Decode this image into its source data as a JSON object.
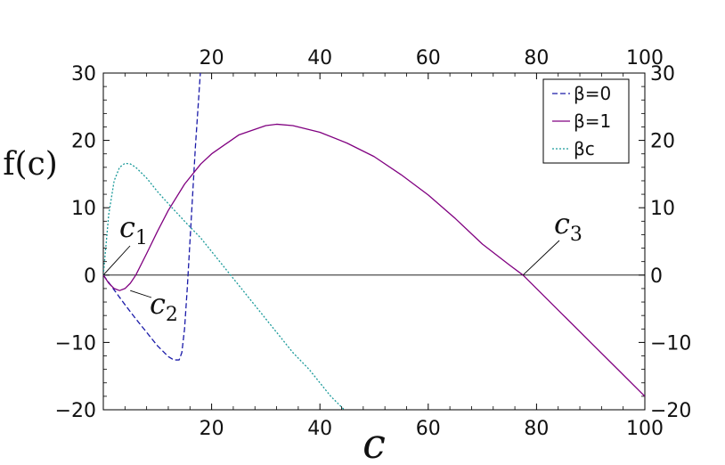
{
  "chart_data": {
    "type": "line",
    "xlabel": "c",
    "ylabel": "f(c)",
    "xlim": [
      0,
      100
    ],
    "ylim": [
      -20,
      30
    ],
    "xticks": [
      20,
      40,
      60,
      80,
      100
    ],
    "yticks": [
      -20,
      -10,
      0,
      10,
      20,
      30
    ],
    "x_tick_labels": [
      "20",
      "40",
      "60",
      "80",
      "100"
    ],
    "y_tick_labels": [
      "−20",
      "−10",
      "0",
      "10",
      "20",
      "30"
    ],
    "grid": false,
    "legend_position": "top-right",
    "legend_frame": "#000000",
    "series": [
      {
        "name": "β=0",
        "color": "#1a1aa8",
        "dash": "dashed",
        "x": [
          0,
          2,
          4,
          6,
          8,
          10,
          12,
          13,
          14,
          14.5,
          15,
          15.5,
          16,
          16.5,
          17,
          17.5,
          18
        ],
        "y": [
          0,
          -2.2,
          -4.4,
          -6.5,
          -8.5,
          -10.5,
          -12.1,
          -12.6,
          -12.6,
          -11.5,
          -8,
          -2,
          5,
          12,
          19,
          25,
          31
        ]
      },
      {
        "name": "β=1",
        "color": "#800080",
        "dash": "solid",
        "x": [
          0,
          1,
          2,
          3,
          4,
          5,
          6,
          8,
          10,
          12,
          15,
          18,
          20,
          25,
          30,
          32,
          35,
          40,
          45,
          50,
          55,
          60,
          65,
          70,
          75,
          77.5,
          80,
          85,
          90,
          95,
          100
        ],
        "y": [
          0,
          -1.2,
          -2,
          -2.3,
          -2,
          -1.2,
          0,
          3.2,
          6.5,
          9.6,
          13.5,
          16.5,
          18,
          20.8,
          22.2,
          22.4,
          22.2,
          21.2,
          19.6,
          17.6,
          14.9,
          11.9,
          8.4,
          4.6,
          1.5,
          0,
          -2,
          -6,
          -10,
          -14,
          -18
        ]
      },
      {
        "name": "βc",
        "color": "#1a9a9a",
        "dash": "dotted",
        "x": [
          0,
          1,
          2,
          3,
          4,
          5,
          6,
          8,
          10,
          12,
          15,
          18,
          20,
          22,
          25,
          28,
          30,
          33,
          35,
          38,
          40,
          42,
          44.5
        ],
        "y": [
          0,
          9,
          14,
          16,
          16.6,
          16.5,
          16,
          14.4,
          12.4,
          10.6,
          8,
          5.5,
          3.5,
          1.5,
          -1.5,
          -4.5,
          -6.5,
          -9.5,
          -11.5,
          -14,
          -16,
          -18,
          -20
        ]
      }
    ],
    "annotations": [
      {
        "label": "c1",
        "base": "c",
        "sub": "1",
        "point_x": 0,
        "point_y": 0
      },
      {
        "label": "c2",
        "base": "c",
        "sub": "2",
        "point_x": 3,
        "point_y": -2.3
      },
      {
        "label": "c3",
        "base": "c",
        "sub": "3",
        "point_x": 77.5,
        "point_y": 0
      }
    ]
  }
}
